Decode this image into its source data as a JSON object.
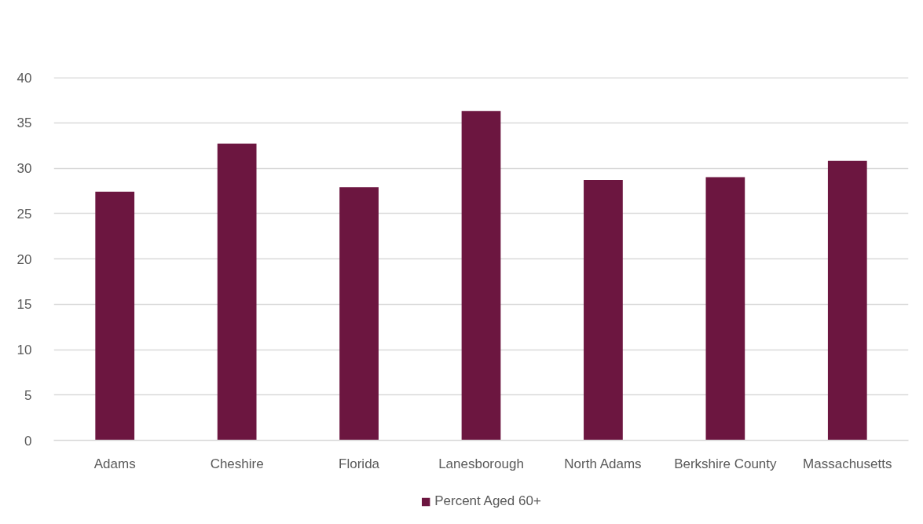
{
  "chart_data": {
    "type": "bar",
    "categories": [
      "Adams",
      "Cheshire",
      "Florida",
      "Lanesborough",
      "North Adams",
      "Berkshire County",
      "Massachusetts"
    ],
    "series": [
      {
        "name": "Percent Aged 60+",
        "color": "#6c1640",
        "values": [
          27.4,
          32.7,
          27.9,
          36.3,
          28.7,
          29.0,
          30.8
        ]
      }
    ],
    "ylim": [
      0,
      40
    ],
    "yticks": [
      0,
      5,
      10,
      15,
      20,
      25,
      30,
      35,
      40
    ],
    "grid": "y",
    "legend": "bottom"
  }
}
